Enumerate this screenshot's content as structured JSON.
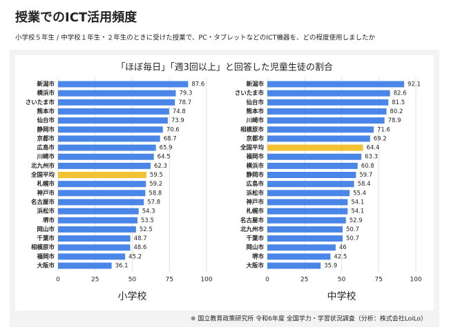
{
  "header": {
    "title": "授業でのICT活用頻度",
    "subtitle": "小学校５年生 / 中学校１年生・２年生のときに受けた授業で、PC・タブレットなどのICT機器を、どの程度使用しましたか"
  },
  "figure_title": "「ほぼ毎日」「週3回以上」と回答した児童生徒の割合",
  "source": "※ 国立教育政策研究所 令和6年度 全国学力・学習状況調査（分析：株式会社LoiLo）",
  "chart_data": [
    {
      "type": "bar",
      "horizontal": true,
      "xlabel": "小学校",
      "categories": [
        "新潟市",
        "横浜市",
        "さいたま市",
        "熊本市",
        "仙台市",
        "静岡市",
        "京都市",
        "広島市",
        "川崎市",
        "北九州市",
        "全国平均",
        "札幌市",
        "神戸市",
        "名古屋市",
        "浜松市",
        "堺市",
        "岡山市",
        "千葉市",
        "相模原市",
        "福岡市",
        "大阪市"
      ],
      "values": [
        87.6,
        79.3,
        78.7,
        74.8,
        73.9,
        70.6,
        68.7,
        65.9,
        64.5,
        62.3,
        59.5,
        59.2,
        58.8,
        57.8,
        54.3,
        53.5,
        52.5,
        48.7,
        48.6,
        45.2,
        36.1
      ],
      "colors": [
        "#4a86e8",
        "#4a86e8",
        "#4a86e8",
        "#4a86e8",
        "#4a86e8",
        "#4a86e8",
        "#4a86e8",
        "#4a86e8",
        "#4a86e8",
        "#4a86e8",
        "#f1c232",
        "#4a86e8",
        "#4a86e8",
        "#4a86e8",
        "#4a86e8",
        "#4a86e8",
        "#4a86e8",
        "#4a86e8",
        "#4a86e8",
        "#4a86e8",
        "#4a86e8"
      ],
      "xlim": [
        0,
        100
      ],
      "xticks": [
        0,
        25,
        50,
        75,
        100
      ],
      "grid": true
    },
    {
      "type": "bar",
      "horizontal": true,
      "xlabel": "中学校",
      "categories": [
        "新潟市",
        "さいたま市",
        "仙台市",
        "熊本市",
        "川崎市",
        "相模原市",
        "京都市",
        "全国平均",
        "福岡市",
        "横浜市",
        "静岡市",
        "広島市",
        "浜松市",
        "神戸市",
        "札幌市",
        "名古屋市",
        "北九州市",
        "千葉市",
        "岡山市",
        "堺市",
        "大阪市"
      ],
      "values": [
        92.1,
        82.6,
        81.5,
        80.2,
        78.9,
        71.6,
        69.2,
        64.4,
        63.3,
        60.8,
        59.7,
        58.4,
        55.4,
        54.1,
        54.1,
        52.9,
        50.7,
        50.7,
        46,
        42.5,
        35.9
      ],
      "colors": [
        "#4a86e8",
        "#4a86e8",
        "#4a86e8",
        "#4a86e8",
        "#4a86e8",
        "#4a86e8",
        "#4a86e8",
        "#f1c232",
        "#4a86e8",
        "#4a86e8",
        "#4a86e8",
        "#4a86e8",
        "#4a86e8",
        "#4a86e8",
        "#4a86e8",
        "#4a86e8",
        "#4a86e8",
        "#4a86e8",
        "#4a86e8",
        "#4a86e8",
        "#4a86e8"
      ],
      "xlim": [
        0,
        100
      ],
      "xticks": [
        0,
        25,
        50,
        75,
        100
      ],
      "grid": true
    }
  ]
}
